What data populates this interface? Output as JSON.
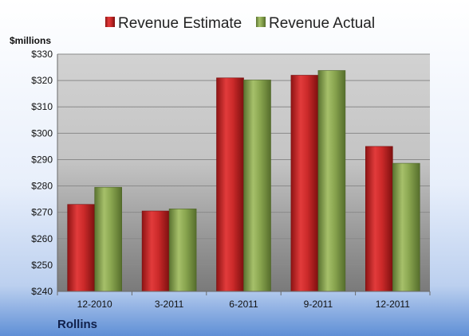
{
  "chart_data": {
    "type": "bar",
    "categories": [
      "12-2010",
      "3-2011",
      "6-2011",
      "9-2011",
      "12-2011"
    ],
    "series": [
      {
        "name": "Revenue Estimate",
        "values": [
          273,
          270.5,
          321,
          322,
          295
        ],
        "color": "#cc2a2a"
      },
      {
        "name": "Revenue Actual",
        "values": [
          279.5,
          271.3,
          320.2,
          323.8,
          288.6
        ],
        "color": "#8aa650"
      }
    ],
    "ylabel": "$millions",
    "ylim": [
      240,
      330
    ],
    "yticks": [
      240,
      250,
      260,
      270,
      280,
      290,
      300,
      310,
      320,
      330
    ],
    "ytick_labels": [
      "$240",
      "$250",
      "$260",
      "$270",
      "$280",
      "$290",
      "$300",
      "$310",
      "$320",
      "$330"
    ],
    "grid": true,
    "legend": "top",
    "company": "Rollins"
  }
}
